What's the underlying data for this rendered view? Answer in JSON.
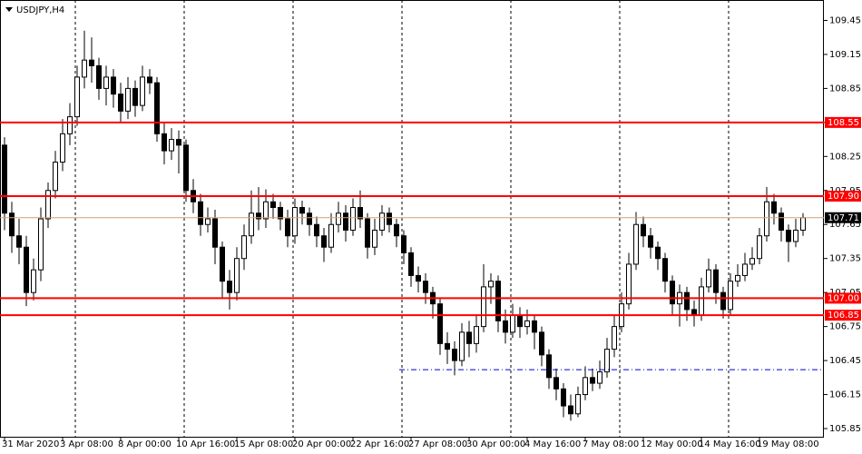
{
  "chart_data": {
    "type": "candlestick",
    "title": "USDJPY,H4",
    "categories": [
      "31 Mar 2020",
      null,
      null,
      null,
      null,
      null,
      null,
      null,
      "3 Apr 08:00",
      null,
      null,
      null,
      null,
      null,
      null,
      null,
      "8 Apr 00:00",
      null,
      null,
      null,
      null,
      null,
      null,
      null,
      "10 Apr 16:00",
      null,
      null,
      null,
      null,
      null,
      null,
      null,
      "15 Apr 08:00",
      null,
      null,
      null,
      null,
      null,
      null,
      null,
      "20 Apr 00:00",
      null,
      null,
      null,
      null,
      null,
      null,
      null,
      "22 Apr 16:00",
      null,
      null,
      null,
      null,
      null,
      null,
      null,
      "27 Apr 08:00",
      null,
      null,
      null,
      null,
      null,
      null,
      null,
      "30 Apr 00:00",
      null,
      null,
      null,
      null,
      null,
      null,
      null,
      "4 May 16:00",
      null,
      null,
      null,
      null,
      null,
      null,
      null,
      "7 May 08:00",
      null,
      null,
      null,
      null,
      null,
      null,
      null,
      "12 May 00:00",
      null,
      null,
      null,
      null,
      null,
      null,
      null,
      "14 May 16:00",
      null,
      null,
      null,
      null,
      null,
      null,
      null,
      "19 May 08:00",
      null,
      null,
      null,
      null,
      null,
      null
    ],
    "open": [
      108.35,
      107.75,
      107.55,
      107.45,
      107.05,
      107.25,
      107.7,
      107.95,
      108.2,
      108.45,
      108.6,
      108.95,
      109.1,
      109.05,
      108.85,
      108.95,
      108.8,
      108.65,
      108.85,
      108.7,
      108.95,
      108.9,
      108.45,
      108.3,
      108.4,
      108.35,
      107.95,
      107.85,
      107.65,
      107.7,
      107.45,
      107.15,
      107.05,
      107.35,
      107.55,
      107.75,
      107.7,
      107.85,
      107.8,
      107.7,
      107.55,
      107.8,
      107.75,
      107.65,
      107.55,
      107.45,
      107.65,
      107.75,
      107.6,
      107.8,
      107.7,
      107.45,
      107.6,
      107.75,
      107.65,
      107.55,
      107.4,
      107.2,
      107.15,
      107.05,
      106.95,
      106.6,
      106.55,
      106.45,
      106.7,
      106.6,
      106.75,
      107.1,
      107.15,
      106.8,
      106.7,
      106.85,
      106.75,
      106.8,
      106.7,
      106.5,
      106.3,
      106.2,
      106.05,
      105.98,
      106.15,
      106.3,
      106.25,
      106.35,
      106.55,
      106.75,
      106.95,
      107.3,
      107.65,
      107.55,
      107.45,
      107.35,
      107.15,
      106.95,
      107.05,
      106.9,
      106.85,
      107.1,
      107.25,
      107.05,
      106.9,
      107.15,
      107.2,
      107.3,
      107.35,
      107.55,
      107.85,
      107.75,
      107.6,
      107.5,
      107.6
    ],
    "high": [
      108.42,
      107.85,
      107.7,
      107.55,
      107.35,
      107.8,
      108.02,
      108.3,
      108.58,
      108.72,
      109.05,
      109.36,
      109.3,
      109.12,
      109.05,
      109.02,
      108.9,
      108.95,
      108.92,
      109.05,
      109.02,
      108.95,
      108.55,
      108.5,
      108.48,
      108.4,
      108.05,
      107.92,
      107.8,
      107.78,
      107.5,
      107.25,
      107.45,
      107.65,
      107.95,
      107.98,
      107.96,
      107.92,
      107.85,
      107.78,
      107.88,
      107.86,
      107.8,
      107.72,
      107.62,
      107.75,
      107.85,
      107.82,
      107.88,
      107.95,
      107.75,
      107.7,
      107.82,
      107.8,
      107.7,
      107.6,
      107.45,
      107.28,
      107.22,
      107.1,
      107.0,
      106.7,
      106.62,
      106.78,
      106.8,
      106.85,
      107.3,
      107.22,
      107.2,
      106.9,
      106.95,
      106.92,
      106.9,
      106.85,
      106.75,
      106.55,
      106.38,
      106.25,
      106.15,
      106.22,
      106.4,
      106.38,
      106.45,
      106.65,
      106.85,
      107.05,
      107.4,
      107.76,
      107.72,
      107.62,
      107.5,
      107.4,
      107.2,
      107.12,
      107.1,
      106.98,
      107.18,
      107.35,
      107.3,
      107.1,
      107.22,
      107.3,
      107.4,
      107.45,
      107.62,
      107.98,
      107.92,
      107.8,
      107.65,
      107.7,
      107.75
    ],
    "low": [
      107.6,
      107.4,
      107.3,
      106.93,
      106.98,
      107.15,
      107.62,
      107.88,
      108.12,
      108.35,
      108.52,
      108.85,
      108.9,
      108.75,
      108.7,
      108.68,
      108.55,
      108.58,
      108.6,
      108.65,
      108.8,
      108.38,
      108.18,
      108.22,
      108.1,
      107.85,
      107.75,
      107.55,
      107.58,
      107.3,
      107.0,
      106.9,
      106.98,
      107.25,
      107.48,
      107.6,
      107.62,
      107.7,
      107.6,
      107.45,
      107.48,
      107.65,
      107.55,
      107.45,
      107.32,
      107.4,
      107.58,
      107.5,
      107.55,
      107.62,
      107.35,
      107.38,
      107.55,
      107.58,
      107.45,
      107.3,
      107.1,
      107.05,
      106.95,
      106.82,
      106.5,
      106.42,
      106.32,
      106.4,
      106.48,
      106.52,
      106.7,
      106.95,
      106.7,
      106.6,
      106.65,
      106.65,
      106.68,
      106.55,
      106.4,
      106.2,
      106.1,
      105.95,
      105.92,
      105.95,
      106.1,
      106.18,
      106.2,
      106.3,
      106.48,
      106.7,
      106.9,
      107.25,
      107.45,
      107.35,
      107.25,
      107.05,
      106.85,
      106.75,
      106.8,
      106.75,
      106.8,
      107.05,
      106.95,
      106.82,
      106.85,
      107.1,
      107.15,
      107.25,
      107.3,
      107.5,
      107.65,
      107.5,
      107.32,
      107.45,
      107.55
    ],
    "close": [
      107.75,
      107.55,
      107.45,
      107.05,
      107.25,
      107.7,
      107.95,
      108.2,
      108.45,
      108.6,
      108.95,
      109.1,
      109.05,
      108.85,
      108.95,
      108.8,
      108.65,
      108.85,
      108.7,
      108.95,
      108.9,
      108.45,
      108.3,
      108.4,
      108.35,
      107.95,
      107.85,
      107.65,
      107.7,
      107.45,
      107.15,
      107.05,
      107.35,
      107.55,
      107.75,
      107.7,
      107.85,
      107.8,
      107.7,
      107.55,
      107.8,
      107.75,
      107.65,
      107.55,
      107.45,
      107.65,
      107.75,
      107.6,
      107.8,
      107.7,
      107.45,
      107.6,
      107.75,
      107.65,
      107.55,
      107.4,
      107.2,
      107.15,
      107.05,
      106.95,
      106.6,
      106.55,
      106.45,
      106.7,
      106.6,
      106.75,
      107.1,
      107.15,
      106.8,
      106.7,
      106.85,
      106.75,
      106.8,
      106.7,
      106.5,
      106.3,
      106.2,
      106.05,
      105.98,
      106.15,
      106.3,
      106.25,
      106.35,
      106.55,
      106.75,
      106.95,
      107.3,
      107.65,
      107.55,
      107.45,
      107.35,
      107.15,
      106.95,
      107.05,
      106.9,
      106.85,
      107.1,
      107.25,
      107.05,
      106.9,
      107.15,
      107.2,
      107.3,
      107.35,
      107.55,
      107.85,
      107.75,
      107.6,
      107.5,
      107.6,
      107.71
    ],
    "bull_color": "#ffffff",
    "bear_color": "#000000",
    "ylim": [
      105.77,
      109.63
    ],
    "yticks": [
      109.45,
      109.15,
      108.85,
      108.55,
      108.25,
      107.95,
      107.65,
      107.35,
      107.05,
      106.75,
      106.45,
      106.15,
      105.85
    ],
    "levels": [
      {
        "value": 108.55,
        "color": "#ff0000"
      },
      {
        "value": 107.9,
        "label": "107.90",
        "color": "#ff0000"
      },
      {
        "value": 107,
        "label": "107.00",
        "color": "#ff0000"
      },
      {
        "value": 106.85,
        "color": "#ff0000"
      }
    ],
    "current_price": {
      "value": 107.71,
      "color": "#d2a07a"
    },
    "trend_line": {
      "value": 106.37,
      "color": "#0000cd"
    }
  }
}
